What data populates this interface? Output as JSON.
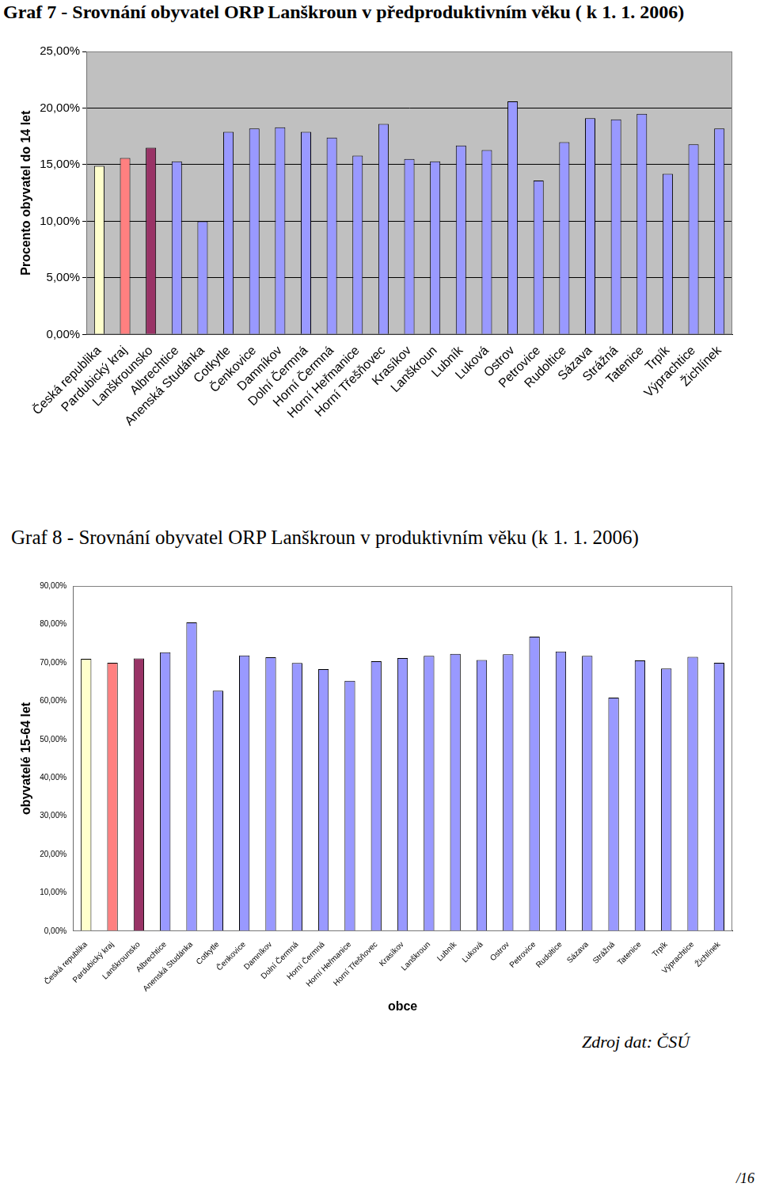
{
  "chart_data": [
    {
      "type": "bar",
      "title": "Graf 7 - Srovnání obyvatel ORP Lanškroun v předproduktivním věku ( k 1. 1. 2006)",
      "y_label": "Procento obyvatel do 14 let",
      "categories": [
        "Česká republika",
        "Pardubický kraj",
        "Lanškrounsko",
        "Albrechtice",
        "Anenská Studánka",
        "Cotkytle",
        "Čenkovice",
        "Damníkov",
        "Dolní Čermná",
        "Horní Čermná",
        "Horní Heřmanice",
        "Horní Třešňovec",
        "Krasíkov",
        "Lanškroun",
        "Lubník",
        "Luková",
        "Ostrov",
        "Petrovice",
        "Rudoltice",
        "Sázava",
        "Strážná",
        "Tatenice",
        "Trpík",
        "Výprachtice",
        "Žichlínek"
      ],
      "values": [
        14.9,
        15.6,
        16.5,
        15.3,
        10.0,
        17.9,
        18.2,
        18.3,
        17.9,
        17.4,
        15.8,
        18.6,
        15.5,
        15.3,
        16.7,
        16.3,
        20.6,
        13.6,
        17.0,
        19.1,
        19.0,
        19.5,
        14.2,
        16.8,
        18.2
      ],
      "colors": [
        "#ffffcc",
        "#ff8080",
        "#993366",
        "#9999ff",
        "#9999ff",
        "#9999ff",
        "#9999ff",
        "#9999ff",
        "#9999ff",
        "#9999ff",
        "#9999ff",
        "#9999ff",
        "#9999ff",
        "#9999ff",
        "#9999ff",
        "#9999ff",
        "#9999ff",
        "#9999ff",
        "#9999ff",
        "#9999ff",
        "#9999ff",
        "#9999ff",
        "#9999ff",
        "#9999ff",
        "#9999ff"
      ],
      "ylim": [
        0,
        25
      ],
      "yticks": [
        {
          "value": 0,
          "label": "0,00%"
        },
        {
          "value": 5,
          "label": "5,00%"
        },
        {
          "value": 10,
          "label": "10,00%"
        },
        {
          "value": 15,
          "label": "15,00%"
        },
        {
          "value": 20,
          "label": "20,00%"
        },
        {
          "value": 25,
          "label": "25,00%"
        }
      ],
      "grid": true
    },
    {
      "type": "bar",
      "title": "Graf  8 - Srovnání  obyvatel ORP Lanškroun v produktivním věku (k 1. 1. 2006)",
      "x_label": "obce",
      "y_label": "obyvatelé 15-64 let",
      "categories": [
        "Česká republika",
        "Pardubický kraj",
        "Lanškrounsko",
        "Albrechtice",
        "Anenská Studánka",
        "Cotkytle",
        "Čenkovice",
        "Damníkov",
        "Dolní Čermná",
        "Horní Čermná",
        "Horní Heřmanice",
        "Horní Třešňovec",
        "Krasíkov",
        "Lanškroun",
        "Lubník",
        "Luková",
        "Ostrov",
        "Petrovice",
        "Rudoltice",
        "Sázava",
        "Strážná",
        "Tatenice",
        "Trpík",
        "Výprachtice",
        "Žichlínek"
      ],
      "values": [
        71.0,
        70.0,
        71.1,
        72.7,
        80.5,
        62.7,
        71.9,
        71.4,
        69.9,
        68.3,
        65.3,
        70.4,
        71.2,
        71.8,
        72.3,
        70.7,
        72.2,
        76.8,
        72.9,
        71.8,
        60.9,
        70.6,
        68.5,
        71.5,
        70.0
      ],
      "colors": [
        "#ffffcc",
        "#ff8080",
        "#993366",
        "#9999ff",
        "#9999ff",
        "#9999ff",
        "#9999ff",
        "#9999ff",
        "#9999ff",
        "#9999ff",
        "#9999ff",
        "#9999ff",
        "#9999ff",
        "#9999ff",
        "#9999ff",
        "#9999ff",
        "#9999ff",
        "#9999ff",
        "#9999ff",
        "#9999ff",
        "#9999ff",
        "#9999ff",
        "#9999ff",
        "#9999ff",
        "#9999ff"
      ],
      "ylim": [
        0,
        90
      ],
      "yticks": [
        {
          "value": 0,
          "label": "0,00%"
        },
        {
          "value": 10,
          "label": "10,00%"
        },
        {
          "value": 20,
          "label": "20,00%"
        },
        {
          "value": 30,
          "label": "30,00%"
        },
        {
          "value": 40,
          "label": "40,00%"
        },
        {
          "value": 50,
          "label": "50,00%"
        },
        {
          "value": 60,
          "label": "60,00%"
        },
        {
          "value": 70,
          "label": "70,00%"
        },
        {
          "value": 80,
          "label": "80,00%"
        },
        {
          "value": 90,
          "label": "90,00%"
        }
      ],
      "grid": false
    }
  ],
  "source": "Zdroj dat: ČSÚ",
  "page_number": "/16"
}
